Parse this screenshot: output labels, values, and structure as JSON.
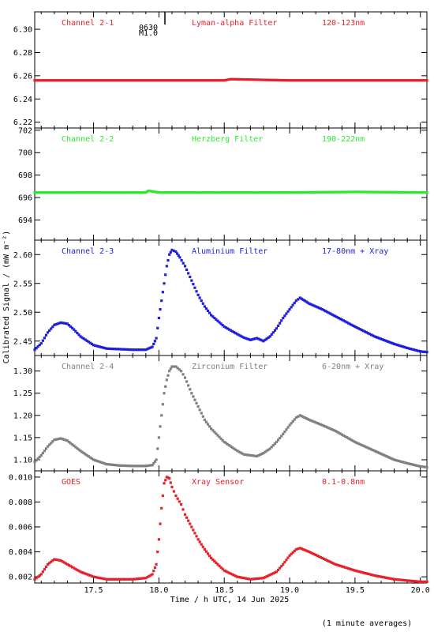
{
  "figure": {
    "ylabel": "Calibrated Signal / (mW m⁻²)",
    "xlabel": "Time / h UTC, 14 Jun 2025",
    "footnote": "(1 minute averages)",
    "marker_time": "0630",
    "marker_label": "M1.0",
    "x_ticks": [
      "17.5",
      "18.0",
      "18.5",
      "19.0",
      "19.5",
      "20.0"
    ]
  },
  "chart_data": [
    {
      "type": "scatter",
      "channel": "Channel 2-1",
      "filter": "Lyman-alpha Filter",
      "band": "120-123nm",
      "color": "#e8202a",
      "xlim": [
        17.05,
        20.05
      ],
      "ylim": [
        6.215,
        6.315
      ],
      "yticks": [
        "6.22",
        "6.24",
        "6.26",
        "6.28",
        "6.30"
      ],
      "ytick_values": [
        6.22,
        6.24,
        6.26,
        6.28,
        6.3
      ],
      "x": [
        17.05,
        17.5,
        18.0,
        18.5,
        18.55,
        19.0,
        19.5,
        20.05
      ],
      "y": [
        6.256,
        6.256,
        6.256,
        6.256,
        6.257,
        6.256,
        6.256,
        6.256
      ]
    },
    {
      "type": "scatter",
      "channel": "Channel 2-2",
      "filter": "Herzberg Filter",
      "band": "190-222nm",
      "color": "#2ee82e",
      "xlim": [
        17.05,
        20.05
      ],
      "ylim": [
        692.2,
        702.2
      ],
      "yticks": [
        "694",
        "696",
        "698",
        "700",
        "702"
      ],
      "ytick_values": [
        694,
        696,
        698,
        700,
        702
      ],
      "x": [
        17.05,
        17.5,
        17.9,
        17.92,
        18.0,
        18.5,
        19.0,
        19.5,
        20.05
      ],
      "y": [
        696.45,
        696.45,
        696.45,
        696.6,
        696.45,
        696.45,
        696.45,
        696.5,
        696.45
      ]
    },
    {
      "type": "scatter",
      "channel": "Channel 2-3",
      "filter": "Aluminium Filter",
      "band": "17-80nm + Xray",
      "color": "#1e1ee0",
      "xlim": [
        17.05,
        20.05
      ],
      "ylim": [
        2.425,
        2.625
      ],
      "yticks": [
        "2.45",
        "2.50",
        "2.55",
        "2.60"
      ],
      "ytick_values": [
        2.45,
        2.5,
        2.55,
        2.6
      ],
      "x": [
        17.05,
        17.1,
        17.15,
        17.2,
        17.25,
        17.3,
        17.35,
        17.4,
        17.5,
        17.6,
        17.7,
        17.8,
        17.9,
        17.95,
        17.98,
        18.0,
        18.02,
        18.04,
        18.06,
        18.08,
        18.1,
        18.13,
        18.16,
        18.2,
        18.25,
        18.3,
        18.35,
        18.4,
        18.5,
        18.6,
        18.65,
        18.7,
        18.75,
        18.8,
        18.85,
        18.9,
        18.95,
        19.0,
        19.05,
        19.08,
        19.15,
        19.25,
        19.35,
        19.5,
        19.65,
        19.8,
        19.9,
        20.0,
        20.05
      ],
      "y": [
        2.435,
        2.446,
        2.465,
        2.478,
        2.482,
        2.48,
        2.47,
        2.458,
        2.443,
        2.437,
        2.436,
        2.435,
        2.435,
        2.44,
        2.455,
        2.49,
        2.52,
        2.55,
        2.58,
        2.6,
        2.608,
        2.605,
        2.595,
        2.58,
        2.555,
        2.53,
        2.51,
        2.495,
        2.475,
        2.462,
        2.456,
        2.452,
        2.455,
        2.45,
        2.458,
        2.472,
        2.49,
        2.505,
        2.52,
        2.525,
        2.515,
        2.505,
        2.493,
        2.475,
        2.458,
        2.445,
        2.438,
        2.432,
        2.431
      ]
    },
    {
      "type": "scatter",
      "channel": "Channel 2-4",
      "filter": "Zirconium Filter",
      "band": "6-20nm + Xray",
      "color": "#808080",
      "xlim": [
        17.05,
        20.05
      ],
      "ylim": [
        1.075,
        1.335
      ],
      "yticks": [
        "1.10",
        "1.15",
        "1.20",
        "1.25",
        "1.30"
      ],
      "ytick_values": [
        1.1,
        1.15,
        1.2,
        1.25,
        1.3
      ],
      "x": [
        17.05,
        17.1,
        17.15,
        17.2,
        17.25,
        17.3,
        17.4,
        17.5,
        17.6,
        17.7,
        17.8,
        17.9,
        17.95,
        17.98,
        18.0,
        18.02,
        18.04,
        18.06,
        18.08,
        18.1,
        18.13,
        18.17,
        18.2,
        18.25,
        18.3,
        18.35,
        18.4,
        18.5,
        18.6,
        18.65,
        18.7,
        18.75,
        18.8,
        18.85,
        18.9,
        18.95,
        19.0,
        19.05,
        19.08,
        19.15,
        19.25,
        19.35,
        19.5,
        19.65,
        19.8,
        19.9,
        20.0,
        20.05
      ],
      "y": [
        1.095,
        1.11,
        1.13,
        1.145,
        1.148,
        1.143,
        1.12,
        1.1,
        1.09,
        1.087,
        1.086,
        1.086,
        1.088,
        1.1,
        1.15,
        1.2,
        1.25,
        1.28,
        1.3,
        1.31,
        1.31,
        1.3,
        1.285,
        1.25,
        1.22,
        1.19,
        1.17,
        1.14,
        1.12,
        1.112,
        1.11,
        1.108,
        1.115,
        1.125,
        1.14,
        1.158,
        1.178,
        1.195,
        1.2,
        1.19,
        1.178,
        1.165,
        1.14,
        1.12,
        1.1,
        1.092,
        1.085,
        1.083
      ]
    },
    {
      "type": "scatter",
      "channel": "GOES",
      "filter": "Xray Sensor",
      "band": "0.1-0.8nm",
      "color": "#e8202a",
      "xlim": [
        17.05,
        20.05
      ],
      "ylim": [
        0.0015,
        0.0105
      ],
      "yticks": [
        "0.002",
        "0.004",
        "0.006",
        "0.008",
        "0.010"
      ],
      "ytick_values": [
        0.002,
        0.004,
        0.006,
        0.008,
        0.01
      ],
      "x": [
        17.05,
        17.1,
        17.15,
        17.2,
        17.25,
        17.3,
        17.4,
        17.5,
        17.6,
        17.7,
        17.8,
        17.9,
        17.95,
        17.98,
        18.0,
        18.02,
        18.04,
        18.06,
        18.08,
        18.1,
        18.13,
        18.17,
        18.2,
        18.25,
        18.3,
        18.35,
        18.4,
        18.5,
        18.6,
        18.7,
        18.8,
        18.9,
        18.95,
        19.0,
        19.05,
        19.08,
        19.15,
        19.25,
        19.35,
        19.5,
        19.65,
        19.8,
        19.9,
        20.0,
        20.05
      ],
      "y": [
        0.0018,
        0.0022,
        0.003,
        0.0034,
        0.0033,
        0.003,
        0.0024,
        0.002,
        0.0018,
        0.0018,
        0.0018,
        0.0019,
        0.0022,
        0.003,
        0.005,
        0.0075,
        0.0095,
        0.01,
        0.0099,
        0.0092,
        0.0085,
        0.0078,
        0.007,
        0.006,
        0.005,
        0.0042,
        0.0035,
        0.0025,
        0.002,
        0.0018,
        0.0019,
        0.0024,
        0.003,
        0.0037,
        0.0042,
        0.0043,
        0.004,
        0.0035,
        0.003,
        0.0025,
        0.0021,
        0.0018,
        0.0017,
        0.0016,
        0.0016
      ]
    }
  ]
}
